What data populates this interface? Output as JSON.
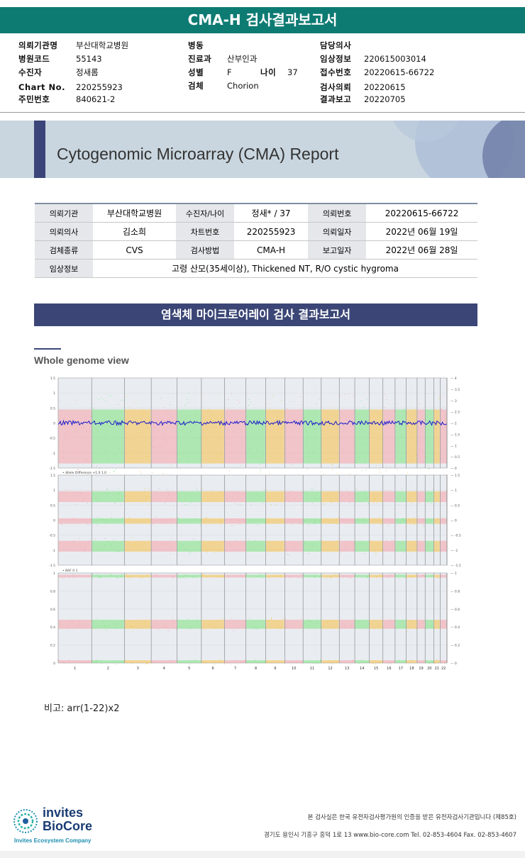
{
  "header": {
    "title": "CMA-H 검사결과보고서"
  },
  "info": {
    "col1": [
      {
        "label": "의뢰기관명",
        "value": "부산대학교병원"
      },
      {
        "label": "병원코드",
        "value": "55143"
      },
      {
        "label": "수진자",
        "value": "정새롬"
      },
      {
        "label": "Chart No.",
        "value": "220255923"
      },
      {
        "label": "주민번호",
        "value": "840621-2"
      }
    ],
    "col2": [
      {
        "label": "병동",
        "value": ""
      },
      {
        "label": "진료과",
        "value": "산부인과"
      },
      {
        "label": "성별",
        "value": "F"
      },
      {
        "label": "검체",
        "value": "Chorion"
      }
    ],
    "age_label": "나이",
    "age_value": "37",
    "col3": [
      {
        "label": "담당의사",
        "value": ""
      },
      {
        "label": "임상정보",
        "value": "220615003014"
      },
      {
        "label": "접수번호",
        "value": "20220615-66722"
      },
      {
        "label": "검사의뢰",
        "value": "20220615"
      },
      {
        "label": "결과보고",
        "value": "20220705"
      }
    ]
  },
  "banner": {
    "title": "Cytogenomic Microarray (CMA) Report"
  },
  "report_table": {
    "rows": [
      [
        {
          "h": "의뢰기관"
        },
        {
          "v": "부산대학교병원"
        },
        {
          "h": "수진자/나이"
        },
        {
          "v": "정새* / 37"
        },
        {
          "h": "의뢰번호"
        },
        {
          "v": "20220615-66722"
        }
      ],
      [
        {
          "h": "의뢰의사"
        },
        {
          "v": "김소희"
        },
        {
          "h": "차트번호"
        },
        {
          "v": "220255923"
        },
        {
          "h": "의뢰일자"
        },
        {
          "v": "2022년 06월 19일"
        }
      ],
      [
        {
          "h": "검체종류"
        },
        {
          "v": "CVS"
        },
        {
          "h": "검사방법"
        },
        {
          "v": "CMA-H"
        },
        {
          "h": "보고일자"
        },
        {
          "v": "2022년 06월 28일"
        }
      ]
    ],
    "clinical_label": "임상정보",
    "clinical_value": "고령 산모(35세이상), Thickened NT, R/O cystic hygroma"
  },
  "section": {
    "title": "염색체 마이크로어레이 검사 결과보고서",
    "subtitle": "Whole genome view"
  },
  "chart_data": {
    "type": "scatter",
    "title": "",
    "chromosomes": [
      "1",
      "2",
      "3",
      "4",
      "5",
      "6",
      "7",
      "8",
      "9",
      "10",
      "11",
      "12",
      "13",
      "14",
      "15",
      "16",
      "17",
      "18",
      "19",
      "20",
      "21",
      "22"
    ],
    "panels": [
      {
        "name": "",
        "y_left_ticks": [
          "1.5",
          "1",
          "0.5",
          "0",
          "-0.5",
          "-1",
          "-1.5"
        ],
        "y_right_ticks": [
          "4",
          "3.5",
          "3",
          "2.5",
          "2",
          "1.5",
          "1",
          "0.5",
          "0"
        ],
        "ylim": [
          -1.5,
          1.5
        ]
      },
      {
        "name": "Allele Difference +1.0    1.0",
        "y_left_ticks": [
          "1.5",
          "1",
          "0.5",
          "0",
          "-0.5",
          "-1",
          "-1.5"
        ],
        "y_right_ticks": [
          "1.5",
          "1",
          "0.5",
          "0",
          "-0.5",
          "-1",
          "-1.5"
        ],
        "ylim": [
          -1.5,
          1.5
        ]
      },
      {
        "name": "BAF  0    1",
        "y_left_ticks": [
          "1",
          "0.8",
          "0.6",
          "0.4",
          "0.2",
          "0"
        ],
        "y_right_ticks": [
          "1",
          "0.8",
          "0.6",
          "0.4",
          "0.2",
          "0"
        ],
        "ylim": [
          0,
          1
        ]
      }
    ],
    "colors": {
      "pink": "#f5a3a8",
      "green": "#7ee27e",
      "orange": "#f7c045",
      "blue": "#1a1acc"
    }
  },
  "note": {
    "text": "비고: arr(1-22)x2"
  },
  "footer": {
    "logo_line1": "invites",
    "logo_line2": "BioCore",
    "logo_tag": "Invites Ecosystem Company",
    "line1": "본 검사실은 한국 유전자검사평가원의 인증을 받은 유전자검사기관입니다 (제85호)",
    "line2": "경기도 용인시 기흥구 흥덕 1로 13 www.bio-core.com Tel. 02-853-4604 Fax. 02-853-4607"
  }
}
